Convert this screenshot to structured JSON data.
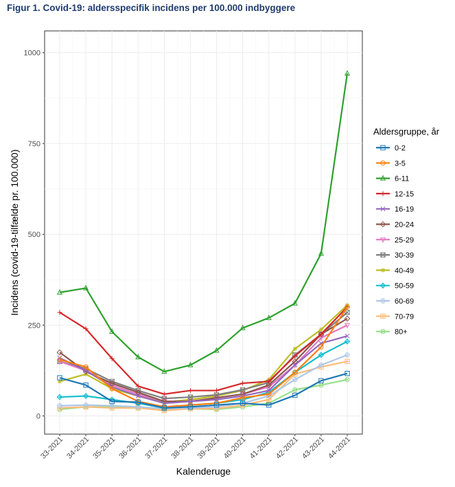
{
  "title": "Figur 1. Covid-19: aldersspecifik incidens per 100.000 indbyggere",
  "chart_data": {
    "type": "line",
    "title": "Figur 1. Covid-19: aldersspecifik incidens per 100.000 indbyggere",
    "xlabel": "Kalenderuge",
    "ylabel": "Incidens (covid-19-tilfælde pr. 100.000)",
    "ylim": [
      -50,
      1060
    ],
    "yticks": [
      0,
      250,
      500,
      750,
      1000
    ],
    "grid": true,
    "legend_title": "Aldersgruppe, år",
    "legend_position": "right",
    "categories": [
      "33-2021",
      "34-2021",
      "35-2021",
      "36-2021",
      "37-2021",
      "38-2021",
      "39-2021",
      "40-2021",
      "41-2021",
      "42-2021",
      "43-2021",
      "44-2021"
    ],
    "series": [
      {
        "name": "0-2",
        "color": "#1f77b4",
        "marker": "square",
        "values": [
          105,
          85,
          40,
          38,
          22,
          25,
          30,
          35,
          30,
          57,
          97,
          117
        ]
      },
      {
        "name": "3-5",
        "color": "#ff7f0e",
        "marker": "circle",
        "values": [
          155,
          135,
          75,
          40,
          25,
          30,
          35,
          50,
          60,
          120,
          190,
          300
        ]
      },
      {
        "name": "6-11",
        "color": "#2ca02c",
        "marker": "triangle",
        "values": [
          340,
          352,
          232,
          162,
          122,
          140,
          180,
          242,
          270,
          310,
          447,
          943
        ]
      },
      {
        "name": "12-15",
        "color": "#d62728",
        "marker": "plus",
        "values": [
          285,
          240,
          158,
          82,
          60,
          70,
          70,
          90,
          95,
          165,
          225,
          300
        ]
      },
      {
        "name": "16-19",
        "color": "#9467bd",
        "marker": "x",
        "values": [
          160,
          125,
          80,
          55,
          35,
          40,
          45,
          55,
          70,
          140,
          200,
          220
        ]
      },
      {
        "name": "20-24",
        "color": "#8c564b",
        "marker": "diamond",
        "values": [
          175,
          122,
          90,
          65,
          40,
          40,
          50,
          60,
          85,
          150,
          225,
          268
        ]
      },
      {
        "name": "25-29",
        "color": "#e377c2",
        "marker": "triangle-down",
        "values": [
          150,
          125,
          85,
          60,
          40,
          40,
          50,
          60,
          80,
          140,
          215,
          250
        ]
      },
      {
        "name": "30-39",
        "color": "#7f7f7f",
        "marker": "square-x",
        "values": [
          150,
          130,
          95,
          70,
          48,
          52,
          58,
          72,
          92,
          168,
          225,
          285
        ]
      },
      {
        "name": "40-49",
        "color": "#bcbd22",
        "marker": "star",
        "values": [
          95,
          115,
          75,
          55,
          38,
          45,
          55,
          70,
          100,
          185,
          238,
          305
        ]
      },
      {
        "name": "50-59",
        "color": "#17becf",
        "marker": "diamond-plus",
        "values": [
          52,
          55,
          45,
          35,
          22,
          30,
          35,
          45,
          65,
          120,
          168,
          205
        ]
      },
      {
        "name": "60-69",
        "color": "#aec7e8",
        "marker": "circle-plus",
        "values": [
          28,
          30,
          28,
          25,
          20,
          22,
          25,
          35,
          55,
          100,
          140,
          168
        ]
      },
      {
        "name": "70-79",
        "color": "#ffbb78",
        "marker": "square-plus",
        "values": [
          22,
          25,
          22,
          22,
          15,
          20,
          20,
          30,
          45,
          115,
          135,
          150
        ]
      },
      {
        "name": "80+",
        "color": "#98df8a",
        "marker": "circle-x",
        "values": [
          18,
          25,
          25,
          22,
          17,
          20,
          18,
          25,
          35,
          72,
          85,
          100
        ]
      }
    ]
  }
}
